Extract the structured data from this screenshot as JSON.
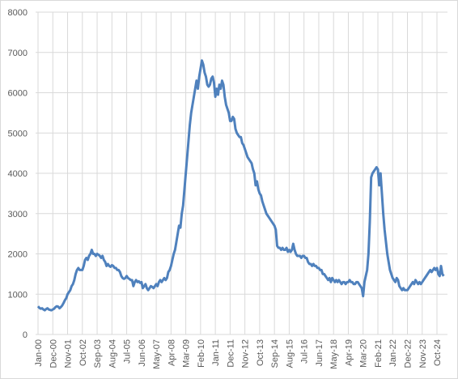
{
  "chart_data": {
    "type": "line",
    "categories": [
      "Jan-00",
      null,
      null,
      null,
      null,
      null,
      null,
      null,
      null,
      null,
      null,
      "Dec-00",
      null,
      null,
      null,
      null,
      null,
      null,
      null,
      null,
      null,
      null,
      "Nov-01",
      null,
      null,
      null,
      null,
      null,
      null,
      null,
      null,
      null,
      null,
      "Oct-02",
      null,
      null,
      null,
      null,
      null,
      null,
      null,
      null,
      null,
      null,
      "Sep-03",
      null,
      null,
      null,
      null,
      null,
      null,
      null,
      null,
      null,
      null,
      "Aug-04",
      null,
      null,
      null,
      null,
      null,
      null,
      null,
      null,
      null,
      null,
      "Jul-05",
      null,
      null,
      null,
      null,
      null,
      null,
      null,
      null,
      null,
      null,
      "Jun-06",
      null,
      null,
      null,
      null,
      null,
      null,
      null,
      null,
      null,
      null,
      "May-07",
      null,
      null,
      null,
      null,
      null,
      null,
      null,
      null,
      null,
      null,
      "Apr-08",
      null,
      null,
      null,
      null,
      null,
      null,
      null,
      null,
      null,
      null,
      "Mar-09",
      null,
      null,
      null,
      null,
      null,
      null,
      null,
      null,
      null,
      null,
      "Feb-10",
      null,
      null,
      null,
      null,
      null,
      null,
      null,
      null,
      null,
      null,
      "Jan-11",
      null,
      null,
      null,
      null,
      null,
      null,
      null,
      null,
      null,
      null,
      "Dec-11",
      null,
      null,
      null,
      null,
      null,
      null,
      null,
      null,
      null,
      null,
      "Nov-12",
      null,
      null,
      null,
      null,
      null,
      null,
      null,
      null,
      null,
      null,
      "Oct-13",
      null,
      null,
      null,
      null,
      null,
      null,
      null,
      null,
      null,
      null,
      "Sep-14",
      null,
      null,
      null,
      null,
      null,
      null,
      null,
      null,
      null,
      null,
      "Aug-15",
      null,
      null,
      null,
      null,
      null,
      null,
      null,
      null,
      null,
      null,
      "Jul-16",
      null,
      null,
      null,
      null,
      null,
      null,
      null,
      null,
      null,
      null,
      "Jun-17",
      null,
      null,
      null,
      null,
      null,
      null,
      null,
      null,
      null,
      null,
      "May-18",
      null,
      null,
      null,
      null,
      null,
      null,
      null,
      null,
      null,
      null,
      "Apr-19",
      null,
      null,
      null,
      null,
      null,
      null,
      null,
      null,
      null,
      null,
      "Mar-20",
      null,
      null,
      null,
      null,
      null,
      null,
      null,
      null,
      null,
      null,
      "Feb-21",
      null,
      null,
      null,
      null,
      null,
      null,
      null,
      null,
      null,
      null,
      "Jan-22",
      null,
      null,
      null,
      null,
      null,
      null,
      null,
      null,
      null,
      null,
      "Dec-22",
      null,
      null,
      null,
      null,
      null,
      null,
      null,
      null,
      null,
      null,
      "Nov-23",
      null,
      null,
      null,
      null,
      null,
      null,
      null,
      null,
      null,
      null,
      "Oct-24",
      null,
      null,
      null,
      null,
      null
    ],
    "values": [
      700,
      660,
      640,
      650,
      620,
      600,
      630,
      650,
      620,
      610,
      600,
      620,
      640,
      680,
      700,
      690,
      650,
      680,
      720,
      780,
      850,
      900,
      1000,
      1050,
      1100,
      1200,
      1250,
      1350,
      1500,
      1600,
      1650,
      1600,
      1600,
      1600,
      1700,
      1850,
      1900,
      1850,
      1950,
      2000,
      2100,
      2000,
      2000,
      1950,
      2000,
      1980,
      1950,
      1900,
      1950,
      1850,
      1800,
      1700,
      1750,
      1700,
      1680,
      1720,
      1700,
      1650,
      1650,
      1600,
      1600,
      1550,
      1450,
      1400,
      1380,
      1400,
      1450,
      1400,
      1380,
      1350,
      1350,
      1200,
      1300,
      1350,
      1300,
      1320,
      1280,
      1300,
      1150,
      1200,
      1250,
      1150,
      1100,
      1150,
      1200,
      1180,
      1150,
      1200,
      1250,
      1200,
      1300,
      1350,
      1300,
      1350,
      1400,
      1350,
      1400,
      1550,
      1600,
      1700,
      1850,
      2000,
      2100,
      2300,
      2500,
      2700,
      2650,
      3000,
      3200,
      3600,
      4000,
      4400,
      4800,
      5200,
      5500,
      5700,
      5900,
      6100,
      6300,
      6100,
      6400,
      6600,
      6800,
      6700,
      6500,
      6400,
      6200,
      6150,
      6200,
      6350,
      6400,
      6250,
      5900,
      6100,
      5950,
      6200,
      6100,
      6300,
      6200,
      5900,
      5700,
      5600,
      5500,
      5300,
      5300,
      5400,
      5350,
      5100,
      5000,
      4950,
      4900,
      4900,
      4750,
      4700,
      4600,
      4500,
      4400,
      4350,
      4300,
      4250,
      4100,
      4000,
      3700,
      3800,
      3600,
      3500,
      3450,
      3300,
      3200,
      3100,
      3000,
      2950,
      2900,
      2850,
      2800,
      2750,
      2700,
      2600,
      2200,
      2150,
      2150,
      2100,
      2150,
      2100,
      2100,
      2150,
      2050,
      2100,
      2050,
      2100,
      2250,
      2100,
      2000,
      1950,
      1950,
      1950,
      1900,
      1950,
      1950,
      1900,
      1900,
      1800,
      1750,
      1750,
      1700,
      1750,
      1700,
      1700,
      1650,
      1650,
      1600,
      1600,
      1500,
      1500,
      1450,
      1400,
      1350,
      1400,
      1300,
      1400,
      1350,
      1300,
      1350,
      1300,
      1350,
      1300,
      1250,
      1300,
      1300,
      1250,
      1300,
      1300,
      1350,
      1300,
      1300,
      1250,
      1250,
      1300,
      1300,
      1250,
      1200,
      1150,
      950,
      1300,
      1450,
      1600,
      2000,
      2800,
      3900,
      4000,
      4050,
      4100,
      4150,
      4100,
      3700,
      4000,
      3500,
      3000,
      2600,
      2300,
      2000,
      1800,
      1600,
      1500,
      1400,
      1350,
      1300,
      1400,
      1350,
      1200,
      1150,
      1100,
      1150,
      1100,
      1100,
      1100,
      1150,
      1200,
      1250,
      1300,
      1250,
      1350,
      1300,
      1250,
      1300,
      1250,
      1300,
      1350,
      1400,
      1450,
      1500,
      1550,
      1600,
      1550,
      1600,
      1650,
      1600,
      1650,
      1500,
      1450,
      1700,
      1500,
      1450
    ],
    "color": "#4f81bd",
    "ylim": [
      0,
      8000
    ],
    "yticks": [
      0,
      1000,
      2000,
      3000,
      4000,
      5000,
      6000,
      7000,
      8000
    ],
    "grid": true
  }
}
